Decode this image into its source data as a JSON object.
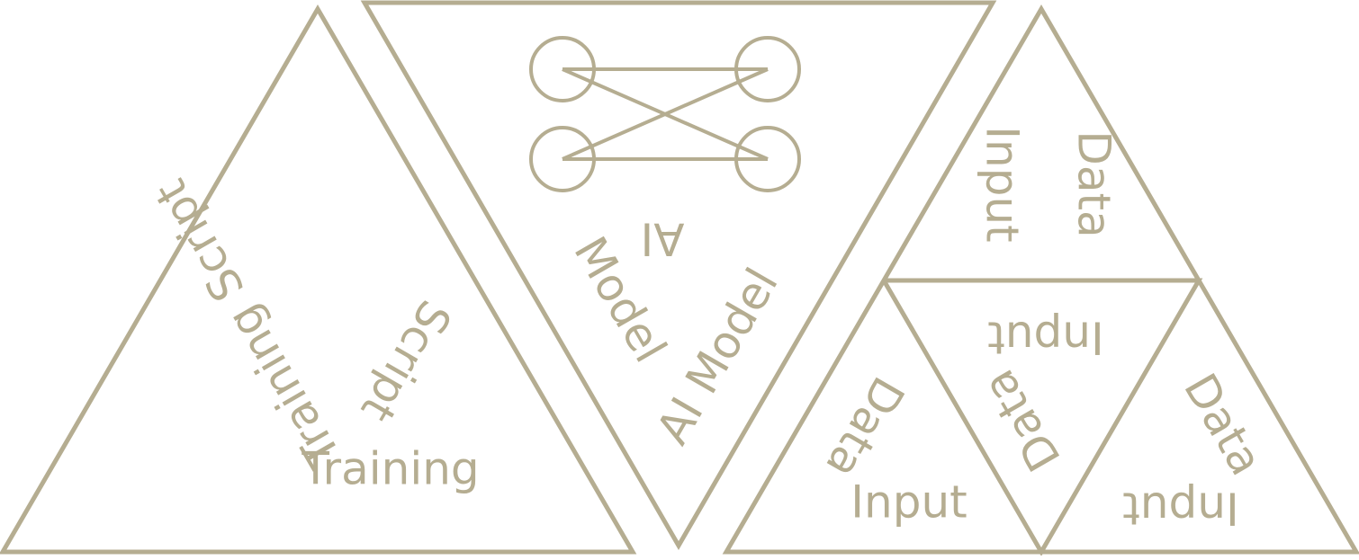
{
  "colors": {
    "line": "#b5ad91",
    "text": "#b5ad91",
    "background": "#ffffff"
  },
  "training_panel": {
    "label_outer": "Training Script",
    "label_inner_1": "Script",
    "label_inner_2": "Training"
  },
  "model_panel": {
    "icon": "neural-network-icon",
    "label_1": "AI",
    "label_2": "Model",
    "label_3": "AI Model"
  },
  "data_panel": {
    "top_1": "Data",
    "top_2": "Input",
    "middle_1": "Input",
    "middle_2": "Data",
    "left_1": "Data",
    "left_2": "Input",
    "right_1": "Data",
    "right_2": "Input"
  }
}
